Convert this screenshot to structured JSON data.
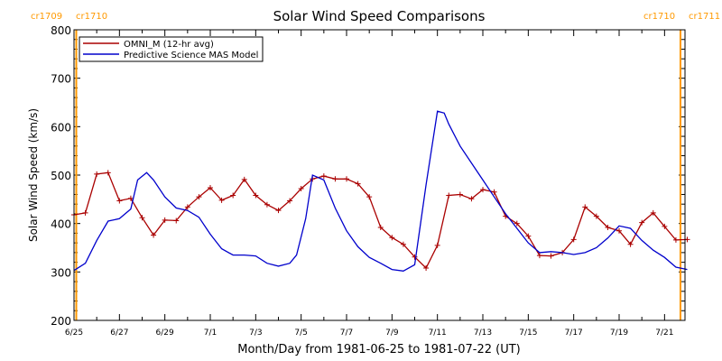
{
  "chart_data": {
    "type": "line",
    "title": "Solar Wind Speed Comparisons",
    "xlabel": "Month/Day from 1981-06-25 to 1981-07-22 (UT)",
    "ylabel": "Solar Wind Speed (km/s)",
    "xlim": [
      0,
      26.9
    ],
    "ylim": [
      200,
      800
    ],
    "y_ticks": [
      200,
      300,
      400,
      500,
      600,
      700,
      800
    ],
    "x_ticks": [
      {
        "x": 0,
        "label": "6/25"
      },
      {
        "x": 2,
        "label": "6/27"
      },
      {
        "x": 4,
        "label": "6/29"
      },
      {
        "x": 6,
        "label": "7/1"
      },
      {
        "x": 8,
        "label": "7/3"
      },
      {
        "x": 10,
        "label": "7/5"
      },
      {
        "x": 12,
        "label": "7/7"
      },
      {
        "x": 14,
        "label": "7/9"
      },
      {
        "x": 16,
        "label": "7/11"
      },
      {
        "x": 18,
        "label": "7/13"
      },
      {
        "x": 20,
        "label": "7/15"
      },
      {
        "x": 22,
        "label": "7/17"
      },
      {
        "x": 24,
        "label": "7/19"
      },
      {
        "x": 26,
        "label": "7/21"
      }
    ],
    "legend_position": "top-left",
    "rotation_markers": [
      {
        "x": 0.1,
        "left_label": "cr1709",
        "right_label": "cr1710",
        "label_side": "left"
      },
      {
        "x": 26.7,
        "left_label": "cr1710",
        "right_label": "cr1711",
        "label_side": "right"
      }
    ],
    "series": [
      {
        "name": "OMNI_M (12-hr avg)",
        "color": "#aa0000",
        "marker": "plus",
        "x": [
          0.0,
          0.5,
          1.0,
          1.5,
          2.0,
          2.5,
          3.0,
          3.5,
          4.0,
          4.5,
          5.0,
          5.5,
          6.0,
          6.5,
          7.0,
          7.5,
          8.0,
          8.5,
          9.0,
          9.5,
          10.0,
          10.5,
          11.0,
          11.5,
          12.0,
          12.5,
          13.0,
          13.5,
          14.0,
          14.5,
          15.0,
          15.5,
          16.0,
          16.5,
          17.0,
          17.5,
          18.0,
          18.5,
          19.0,
          19.5,
          20.0,
          20.5,
          21.0,
          21.5,
          22.0,
          22.5,
          23.0,
          23.5,
          24.0,
          24.5,
          25.0,
          25.5,
          26.0,
          26.5,
          27.0
        ],
        "y": [
          418,
          422,
          502,
          505,
          447,
          452,
          412,
          376,
          407,
          406,
          434,
          455,
          474,
          448,
          458,
          491,
          458,
          439,
          427,
          447,
          472,
          492,
          498,
          492,
          492,
          482,
          455,
          392,
          371,
          357,
          331,
          308,
          355,
          458,
          460,
          451,
          470,
          465,
          415,
          400,
          374,
          334,
          333,
          340,
          367,
          434,
          415,
          392,
          385,
          357,
          402,
          422,
          394,
          366,
          367
        ]
      },
      {
        "name": "Predictive Science MAS Model",
        "color": "#0000cc",
        "marker": "none",
        "x": [
          0.0,
          0.5,
          1.0,
          1.5,
          2.0,
          2.5,
          2.8,
          3.2,
          3.5,
          4.0,
          4.5,
          5.0,
          5.5,
          6.0,
          6.5,
          7.0,
          7.5,
          8.0,
          8.5,
          9.0,
          9.5,
          9.8,
          10.2,
          10.5,
          11.0,
          11.5,
          12.0,
          12.5,
          13.0,
          13.5,
          14.0,
          14.5,
          15.0,
          15.5,
          16.0,
          16.3,
          16.5,
          17.0,
          17.5,
          18.0,
          18.5,
          19.0,
          19.5,
          20.0,
          20.5,
          21.0,
          21.5,
          22.0,
          22.5,
          23.0,
          23.5,
          24.0,
          24.5,
          25.0,
          25.5,
          26.0,
          26.5,
          27.0
        ],
        "y": [
          303,
          318,
          365,
          405,
          410,
          430,
          490,
          505,
          490,
          455,
          432,
          427,
          413,
          378,
          348,
          335,
          335,
          333,
          318,
          312,
          318,
          335,
          410,
          500,
          490,
          432,
          385,
          352,
          330,
          318,
          305,
          302,
          315,
          480,
          632,
          628,
          605,
          560,
          525,
          490,
          455,
          420,
          390,
          360,
          340,
          342,
          340,
          336,
          340,
          350,
          370,
          395,
          390,
          365,
          345,
          330,
          310,
          305
        ]
      }
    ]
  }
}
